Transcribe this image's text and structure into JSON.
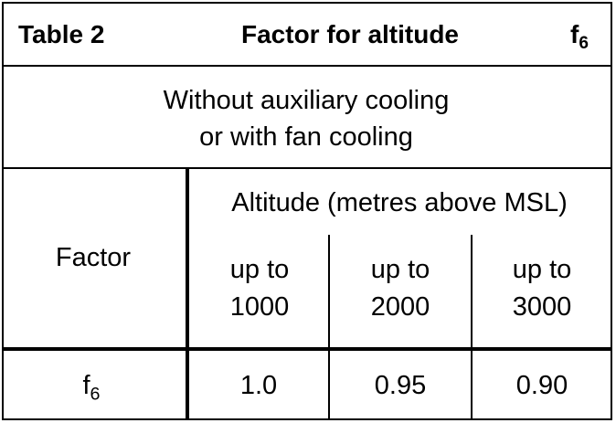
{
  "header": {
    "table_number": "Table 2",
    "title": "Factor for altitude",
    "symbol_base": "f",
    "symbol_sub": "6"
  },
  "condition": {
    "line1": "Without auxiliary cooling",
    "line2": "or with fan cooling"
  },
  "columns": {
    "factor_label": "Factor",
    "altitude_label": "Altitude (metres above MSL)",
    "ranges": [
      {
        "line1": "up to",
        "line2": "1000"
      },
      {
        "line1": "up to",
        "line2": "2000"
      },
      {
        "line1": "up to",
        "line2": "3000"
      }
    ]
  },
  "row": {
    "label_base": "f",
    "label_sub": "6",
    "values": [
      "1.0",
      "0.95",
      "0.90"
    ]
  }
}
